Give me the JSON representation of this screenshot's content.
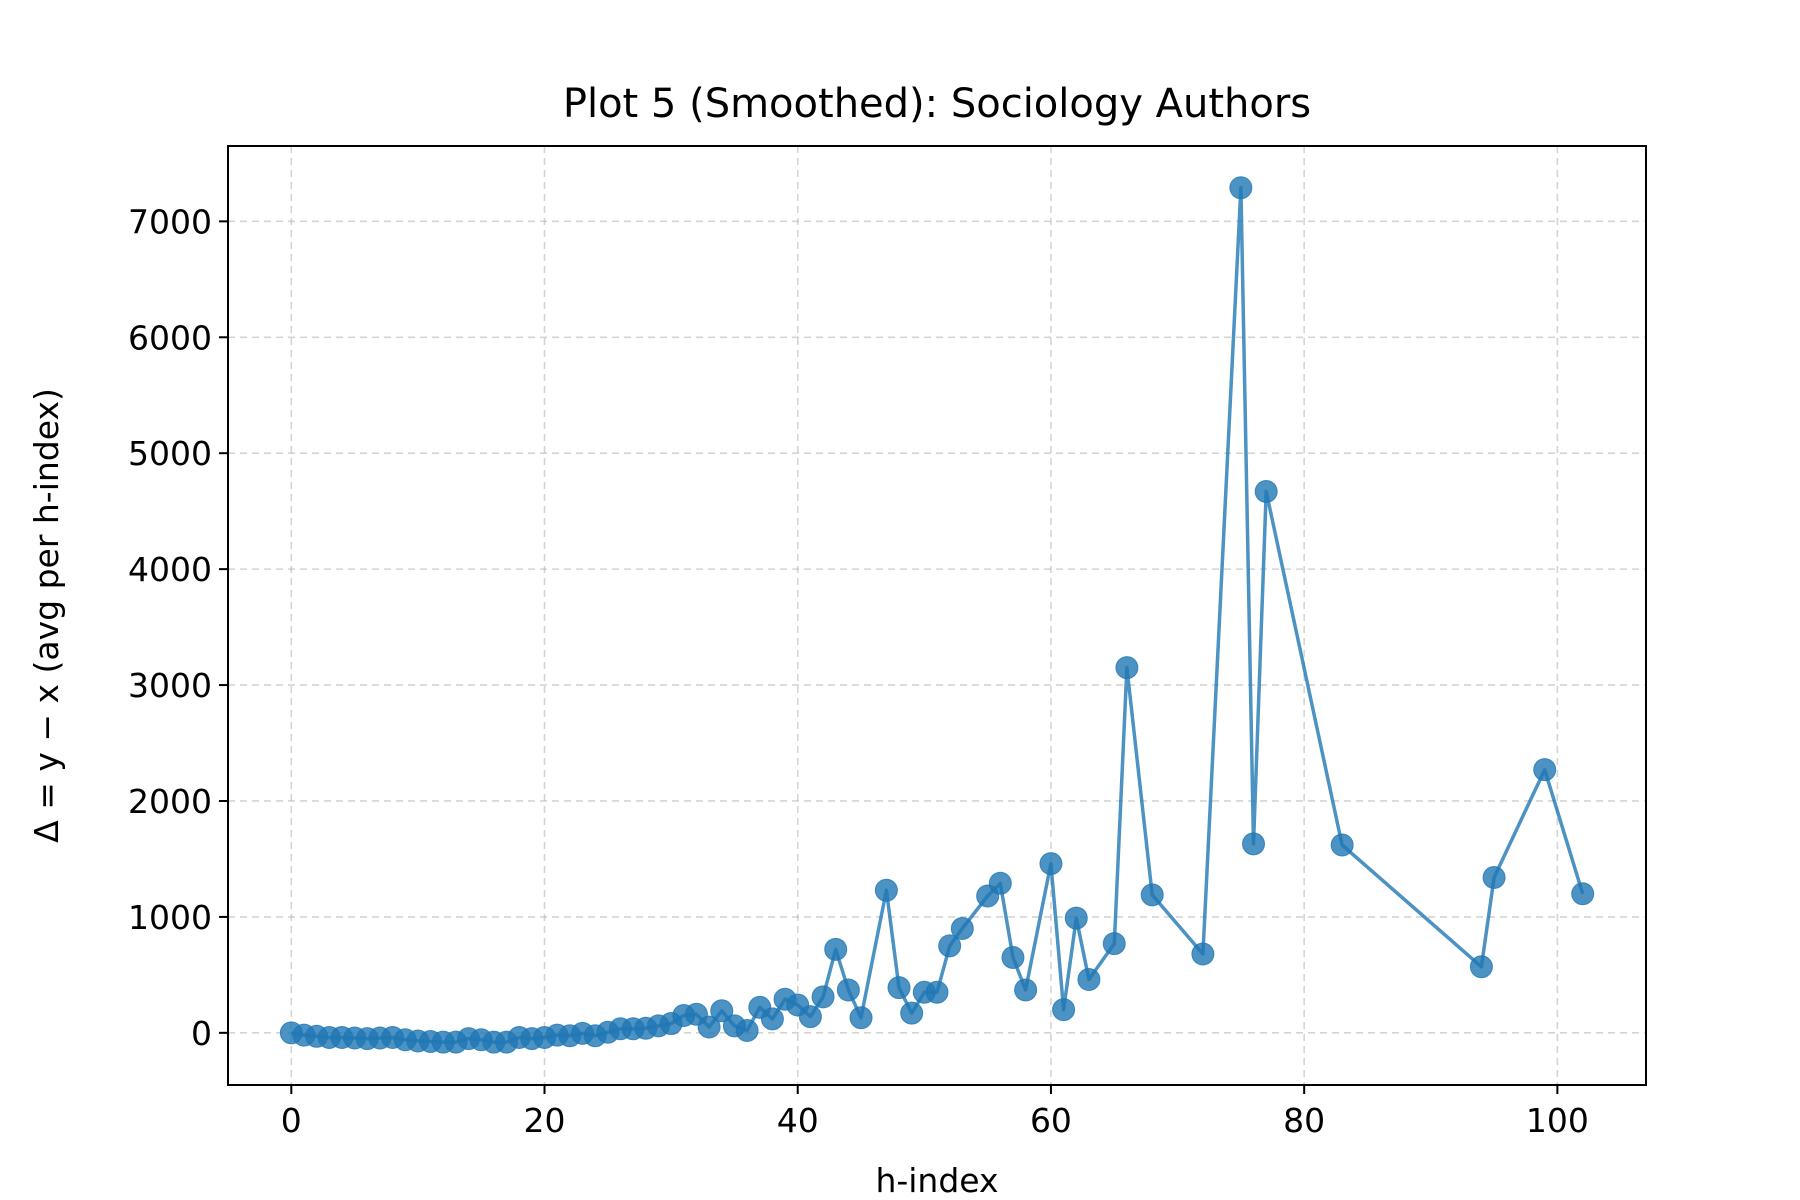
{
  "chart_data": {
    "type": "line",
    "title": "Plot 5 (Smoothed): Sociology Authors",
    "xlabel": "h-index",
    "ylabel": "Δ = y − x (avg per h-index)",
    "xlim": [
      -5,
      107
    ],
    "ylim": [
      -450,
      7650
    ],
    "xticks": [
      0,
      20,
      40,
      60,
      80,
      100
    ],
    "yticks": [
      0,
      1000,
      2000,
      3000,
      4000,
      5000,
      6000,
      7000
    ],
    "grid": true,
    "legend": "none",
    "series": [
      {
        "color": "#1f77b4",
        "marker": "circle",
        "x": [
          0,
          1,
          2,
          3,
          4,
          5,
          6,
          7,
          8,
          9,
          10,
          11,
          12,
          13,
          14,
          15,
          16,
          17,
          18,
          19,
          20,
          21,
          22,
          23,
          24,
          25,
          26,
          27,
          28,
          29,
          30,
          31,
          32,
          33,
          34,
          35,
          36,
          37,
          38,
          39,
          40,
          41,
          42,
          43,
          44,
          45,
          47,
          48,
          49,
          50,
          51,
          52,
          53,
          55,
          56,
          57,
          58,
          60,
          61,
          62,
          63,
          65,
          66,
          68,
          72,
          75,
          76,
          77,
          83,
          94,
          95,
          99,
          102
        ],
        "y": [
          0,
          -20,
          -30,
          -40,
          -40,
          -45,
          -50,
          -45,
          -40,
          -60,
          -70,
          -75,
          -80,
          -80,
          -50,
          -60,
          -80,
          -80,
          -40,
          -50,
          -40,
          -20,
          -25,
          -5,
          -25,
          5,
          35,
          35,
          40,
          60,
          80,
          150,
          160,
          50,
          190,
          60,
          20,
          220,
          120,
          290,
          240,
          140,
          310,
          720,
          370,
          130,
          1230,
          390,
          170,
          350,
          350,
          750,
          900,
          1180,
          1290,
          650,
          370,
          1460,
          200,
          990,
          460,
          770,
          3150,
          1190,
          680,
          7290,
          1630,
          4670,
          1620,
          570,
          1340,
          2270,
          1200
        ]
      }
    ]
  }
}
